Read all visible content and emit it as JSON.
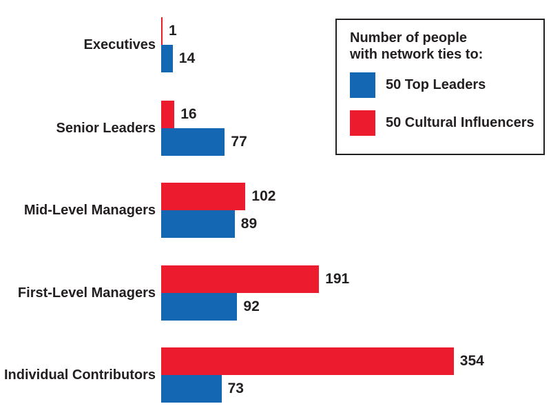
{
  "chart_data": {
    "type": "bar",
    "orientation": "horizontal",
    "categories": [
      "Executives",
      "Senior Leaders",
      "Mid-Level Managers",
      "First-Level Managers",
      "Individual Contributors"
    ],
    "series": [
      {
        "name": "50 Top Leaders",
        "color": "#1467B2",
        "group_position": "bottom",
        "values": [
          14,
          77,
          89,
          92,
          73
        ]
      },
      {
        "name": "50 Cultural Influencers",
        "color": "#ED1B2E",
        "group_position": "top",
        "values": [
          1,
          16,
          102,
          191,
          354
        ]
      }
    ],
    "legend": {
      "title": "Number of people\nwith network ties to:",
      "position": "top-right",
      "border_color": "#231F20"
    },
    "value_labels_shown": true,
    "axes": {
      "x_axis_shown": false,
      "y_axis_shown": false,
      "grid": false
    },
    "xlim": [
      0,
      380
    ],
    "text_color": "#231F20",
    "background_color": "#FFFFFF"
  }
}
